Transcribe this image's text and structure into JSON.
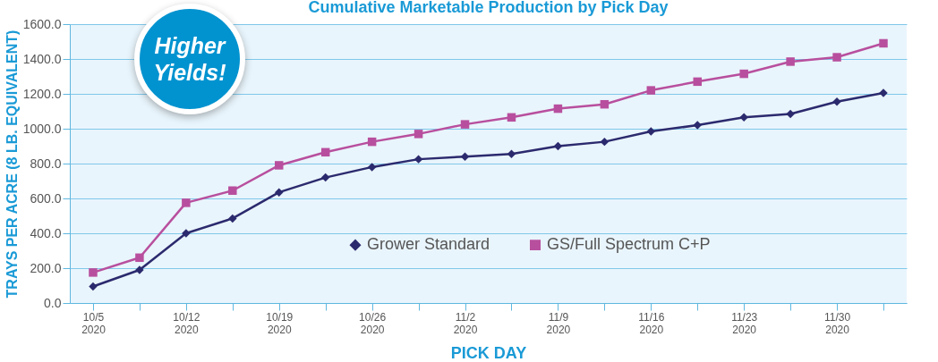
{
  "chart_data": {
    "type": "line",
    "title": "Cumulative Marketable Production by Pick Day",
    "xlabel": "PICK DAY",
    "ylabel": "TRAYS PER ACRE (8 LB. EQUIVALENT)",
    "categories": [
      "10/5\n2020",
      null,
      "10/12\n2020",
      null,
      "10/19\n2020",
      null,
      "10/26\n2020",
      null,
      "11/2\n2020",
      null,
      "11/9\n2020",
      null,
      "11/16\n2020",
      null,
      "11/23\n2020",
      null,
      "11/30\n2020",
      null
    ],
    "series": [
      {
        "name": "Grower Standard",
        "color": "#2b2a6e",
        "marker": "diamond",
        "values": [
          95,
          190,
          400,
          485,
          635,
          720,
          780,
          825,
          840,
          855,
          900,
          925,
          985,
          1020,
          1065,
          1085,
          1155,
          1205
        ]
      },
      {
        "name": "GS/Full Spectrum C+P",
        "color": "#b84f9e",
        "marker": "square",
        "values": [
          175,
          260,
          575,
          645,
          790,
          865,
          925,
          970,
          1025,
          1065,
          1115,
          1140,
          1220,
          1270,
          1315,
          1385,
          1410,
          1490
        ]
      }
    ],
    "ylim": [
      0,
      1600
    ],
    "yticks": [
      {
        "value": 0,
        "label": "0.0"
      },
      {
        "value": 200,
        "label": "200.0"
      },
      {
        "value": 400,
        "label": "400.0"
      },
      {
        "value": 600,
        "label": "600.0"
      },
      {
        "value": 800,
        "label": "800.0"
      },
      {
        "value": 1000,
        "label": "1000.0"
      },
      {
        "value": 1200,
        "label": "1200.0"
      },
      {
        "value": 1400,
        "label": "1400.0"
      },
      {
        "value": 1600,
        "label": "1600.0"
      }
    ],
    "grid": "y",
    "legend": "bottom",
    "line_style": "solid",
    "annotations": [
      "Higher\nYields!"
    ]
  }
}
